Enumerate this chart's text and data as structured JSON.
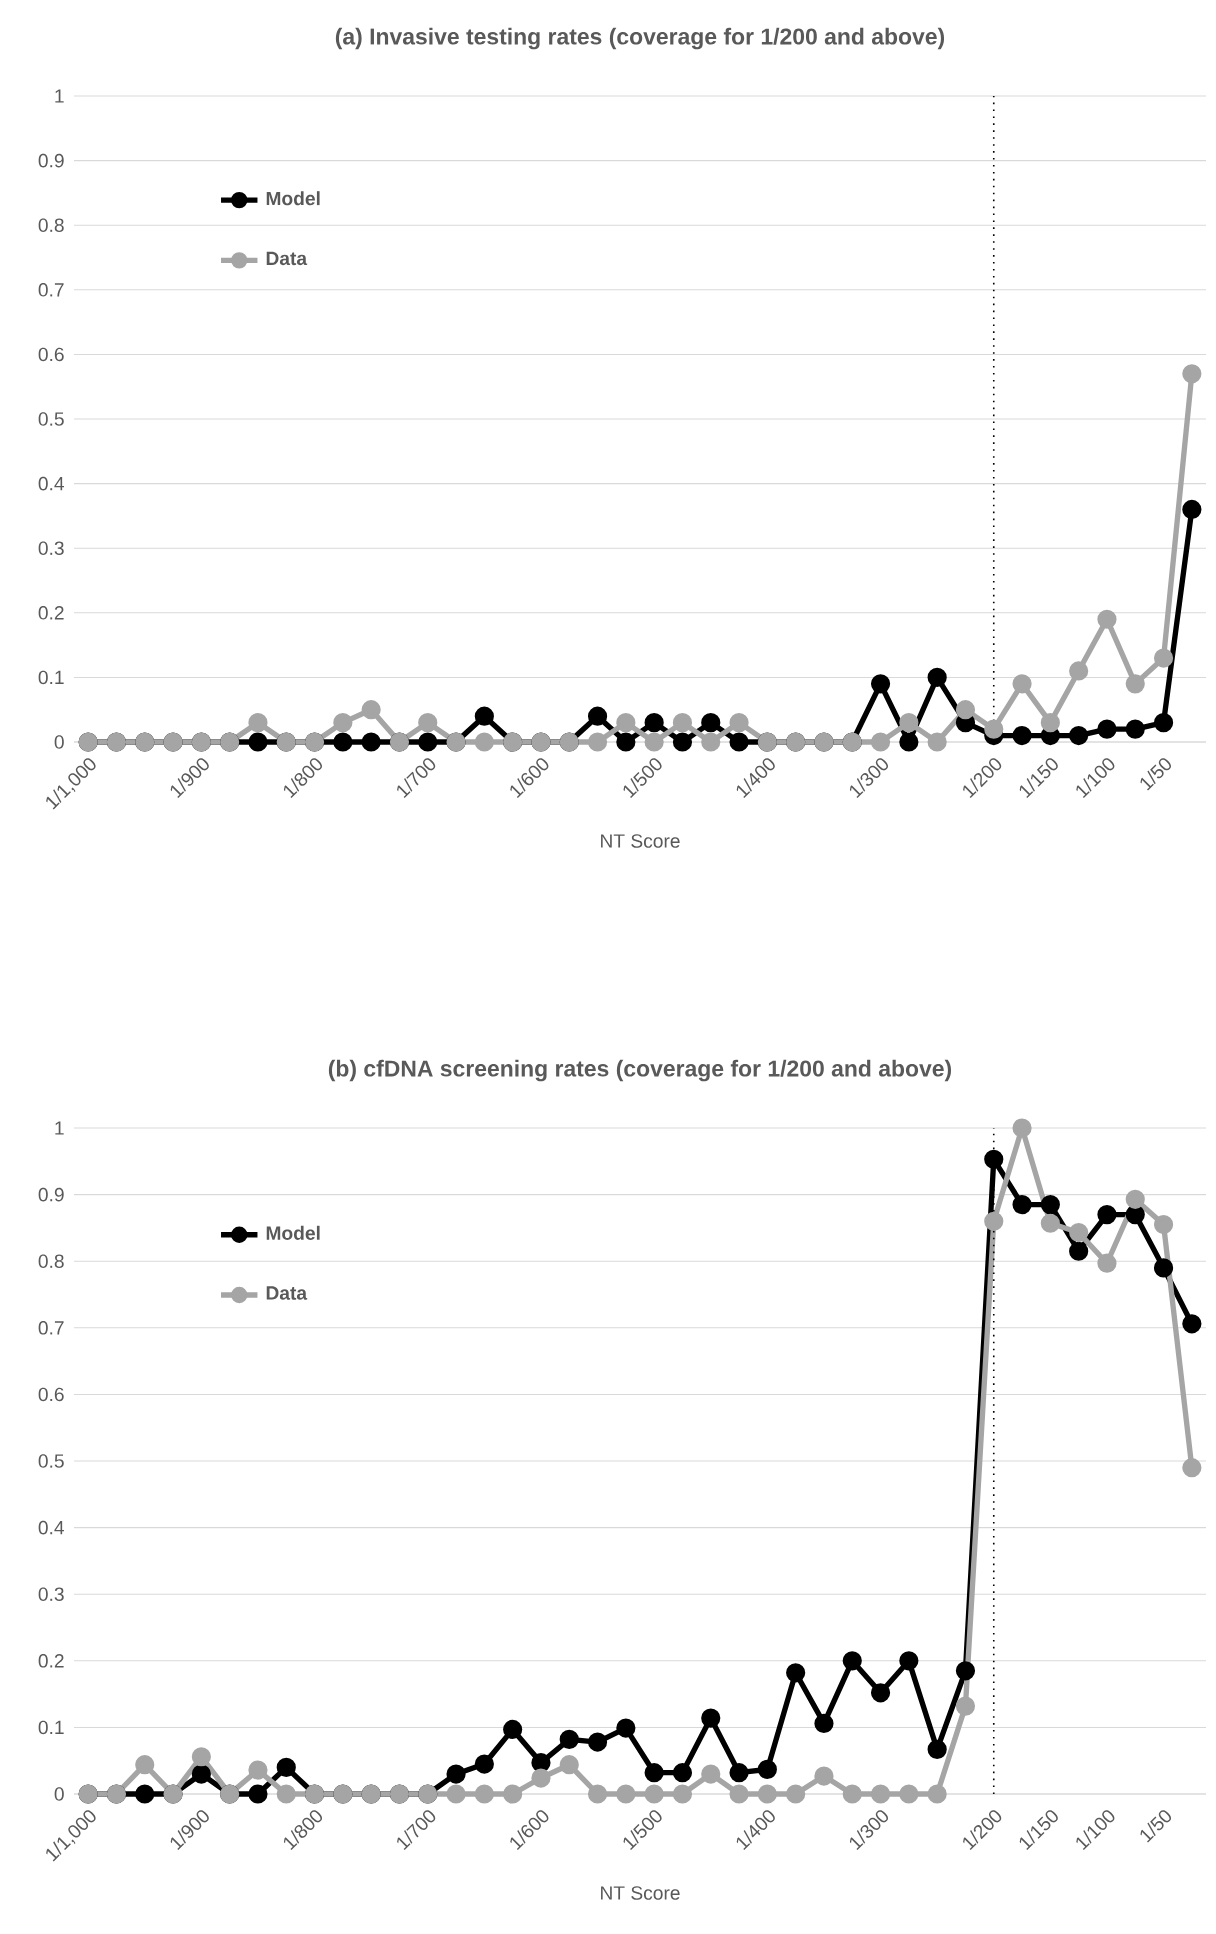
{
  "chart_data": [
    {
      "type": "line",
      "title": "**(a) Invasive testing rates (coverage for 1/200 and above)**",
      "xlabel": "NT Score",
      "categories": [
        "1/1,000",
        null,
        null,
        null,
        "1/900",
        null,
        null,
        null,
        "1/800",
        null,
        null,
        null,
        "1/700",
        null,
        null,
        null,
        "1/600",
        null,
        null,
        null,
        "1/500",
        null,
        null,
        null,
        "1/400",
        null,
        null,
        null,
        "1/300",
        null,
        null,
        null,
        "1/200",
        null,
        "1/150",
        null,
        "1/100",
        null,
        "1/50",
        null
      ],
      "series": [
        {
          "name": "Model",
          "color": "#000000",
          "values": [
            0,
            0,
            0,
            0,
            0,
            0,
            0,
            0,
            0,
            0,
            0,
            0,
            0,
            0,
            0.04,
            0,
            0,
            0,
            0.04,
            0,
            0.03,
            0,
            0.03,
            0,
            0,
            0,
            0,
            0,
            0.09,
            0,
            0.1,
            0.03,
            0.01,
            0.01,
            0.01,
            0.01,
            0.02,
            0.02,
            0.03,
            0.36
          ]
        },
        {
          "name": "Data",
          "color": "#a5a5a5",
          "values": [
            0,
            0,
            0,
            0,
            0,
            0,
            0.03,
            0,
            0,
            0.03,
            0.05,
            0,
            0.03,
            0,
            0,
            0,
            0,
            0,
            0,
            0.03,
            0,
            0.03,
            0,
            0.03,
            0,
            0,
            0,
            0,
            0,
            0.03,
            0,
            0.05,
            0.02,
            0.09,
            0.03,
            0.11,
            0.19,
            0.09,
            0.13,
            0.57
          ]
        }
      ],
      "ylim": [
        0,
        1
      ],
      "yticks": [
        0,
        0.1,
        0.2,
        0.3,
        0.4,
        0.5,
        0.6,
        0.7,
        0.8,
        0.9,
        1
      ],
      "grid": "y",
      "legend": "top left",
      "marker": "circle",
      "line_style": "solid",
      "ref_lines": [
        {
          "axis": "x",
          "value": "1/200",
          "line_style": "dotted",
          "color": "#000000"
        }
      ]
    },
    {
      "type": "line",
      "title": "**(b) cfDNA screening rates  (coverage for 1/200 and above)**",
      "xlabel": "NT Score",
      "categories": [
        "1/1,000",
        null,
        null,
        null,
        "1/900",
        null,
        null,
        null,
        "1/800",
        null,
        null,
        null,
        "1/700",
        null,
        null,
        null,
        "1/600",
        null,
        null,
        null,
        "1/500",
        null,
        null,
        null,
        "1/400",
        null,
        null,
        null,
        "1/300",
        null,
        null,
        null,
        "1/200",
        null,
        "1/150",
        null,
        "1/100",
        null,
        "1/50",
        null
      ],
      "series": [
        {
          "name": "Model",
          "color": "#000000",
          "values": [
            0,
            0,
            0,
            0,
            0.03,
            0,
            0,
            0.04,
            0,
            0,
            0,
            0,
            0,
            0.03,
            0.045,
            0.097,
            0.047,
            0.082,
            0.078,
            0.099,
            0.032,
            0.032,
            0.114,
            0.032,
            0.037,
            0.182,
            0.106,
            0.2,
            0.152,
            0.2,
            0.067,
            0.185,
            0.953,
            0.885,
            0.885,
            0.815,
            0.87,
            0.87,
            0.79,
            0.706
          ]
        },
        {
          "name": "Data",
          "color": "#a5a5a5",
          "values": [
            0,
            0,
            0.044,
            0,
            0.056,
            0,
            0.036,
            0,
            0,
            0,
            0,
            0,
            0,
            0,
            0,
            0,
            0.024,
            0.044,
            0,
            0,
            0,
            0,
            0.03,
            0,
            0,
            0,
            0.027,
            0,
            0,
            0,
            0,
            0.132,
            0.86,
            1,
            0.857,
            0.843,
            0.797,
            0.893,
            0.855,
            0.49
          ]
        }
      ],
      "ylim": [
        0,
        1
      ],
      "yticks": [
        0,
        0.1,
        0.2,
        0.3,
        0.4,
        0.5,
        0.6,
        0.7,
        0.8,
        0.9,
        1
      ],
      "grid": "y",
      "legend": "top left",
      "marker": "circle",
      "line_style": "solid",
      "ref_lines": [
        {
          "axis": "x",
          "value": "1/200",
          "line_style": "dotted",
          "color": "#000000"
        }
      ]
    }
  ]
}
